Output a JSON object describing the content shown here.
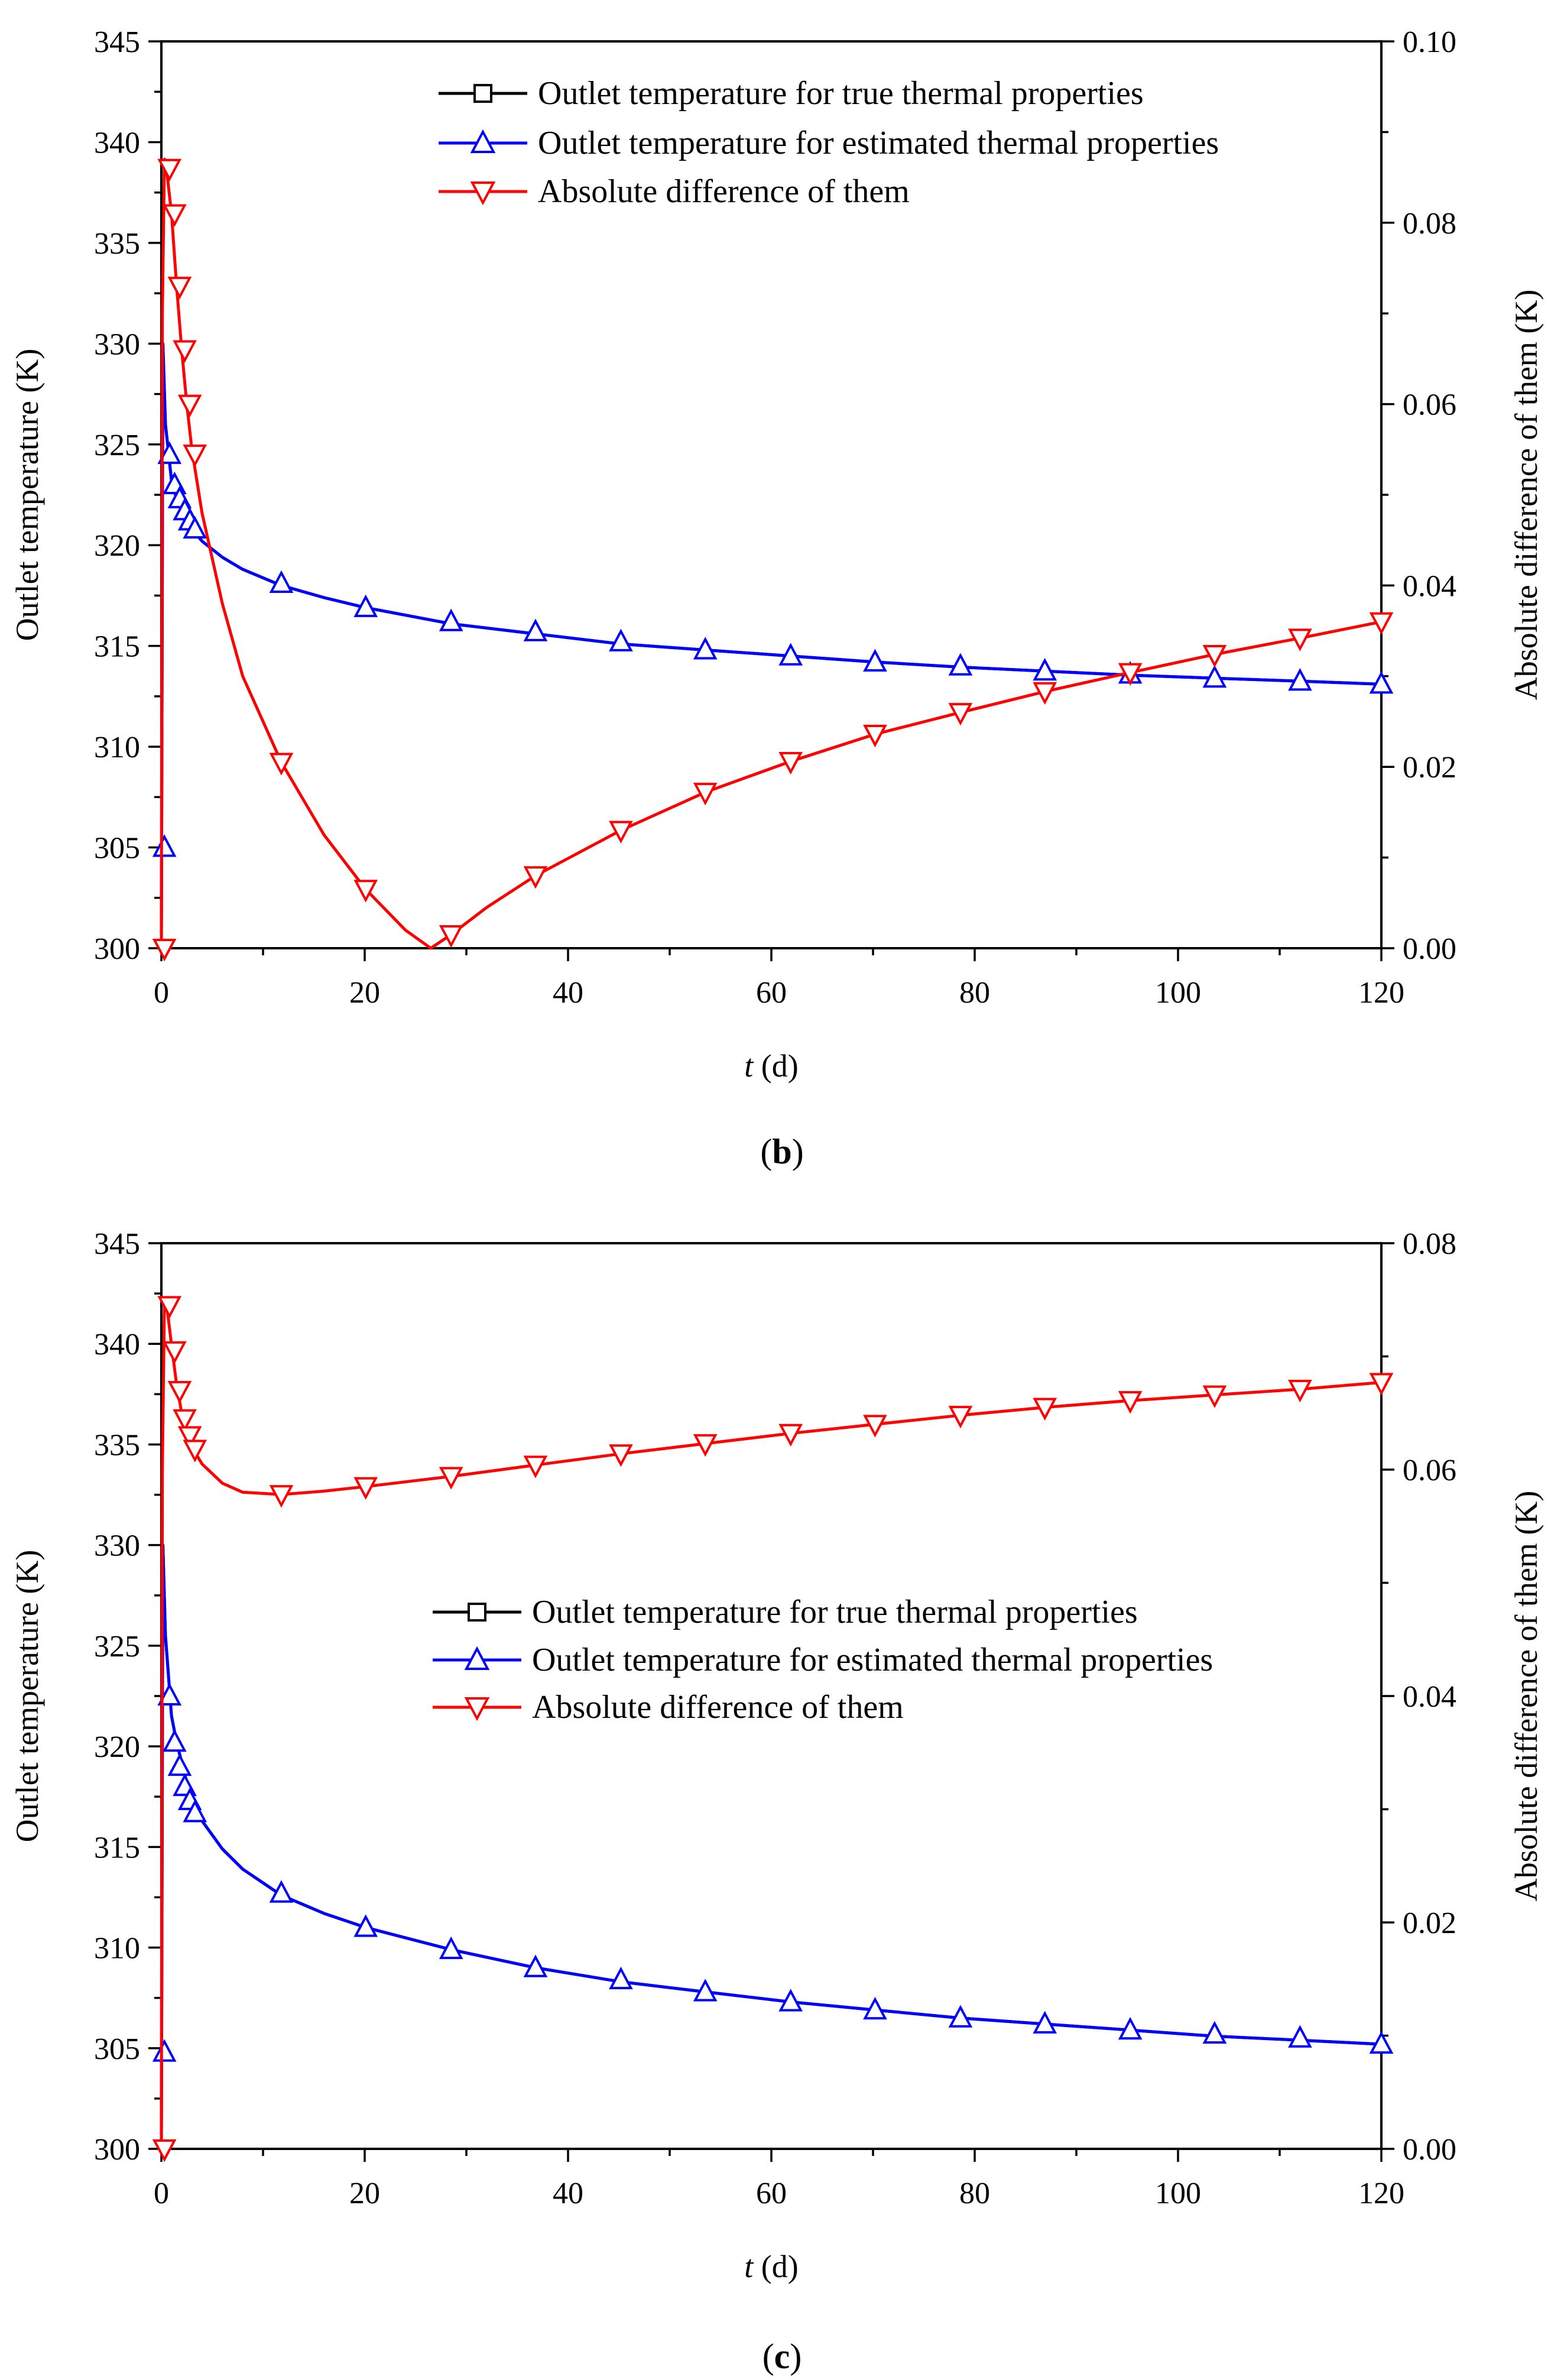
{
  "figures": [
    {
      "caption": {
        "open": "(",
        "letter": "b",
        "close": ")"
      }
    },
    {
      "caption": {
        "open": "(",
        "letter": "c",
        "close": ")"
      }
    }
  ],
  "colors": {
    "true_series": "#000000",
    "estimated_series": "#0000ff",
    "difference_series": "#ff0000"
  },
  "chart_data": [
    {
      "type": "line",
      "title": "",
      "xlabel_italic": "t",
      "xlabel_rest": " (d)",
      "ylabel": "Outlet temperature (K)",
      "y2label": "Absolute difference of them (K)",
      "xlim": [
        0,
        120
      ],
      "ylim": [
        300,
        345
      ],
      "y2lim": [
        0,
        0.1
      ],
      "xticks": [
        0,
        20,
        40,
        60,
        80,
        100,
        120
      ],
      "xtick_labels": [
        "0",
        "20",
        "40",
        "60",
        "80",
        "100",
        "120"
      ],
      "yticks": [
        300,
        305,
        310,
        315,
        320,
        325,
        330,
        335,
        340,
        345
      ],
      "ytick_labels": [
        "300",
        "305",
        "310",
        "315",
        "320",
        "325",
        "330",
        "335",
        "340",
        "345"
      ],
      "y2ticks": [
        0,
        0.02,
        0.04,
        0.06,
        0.08,
        0.1
      ],
      "y2tick_labels": [
        "0.00",
        "0.02",
        "0.04",
        "0.06",
        "0.08",
        "0.10"
      ],
      "legend_position": "top-right",
      "legend": [
        "Outlet temperature for true thermal properties",
        "Outlet temperature for estimated thermal properties",
        "Absolute difference of them"
      ],
      "series": [
        {
          "name": "Outlet temperature for true thermal properties",
          "axis": "left",
          "marker": "square",
          "x": [
            0,
            0.15,
            0.4,
            1,
            1.5,
            2,
            2.5,
            3,
            4,
            6,
            8,
            11.8,
            16,
            20.1,
            28.5,
            36.8,
            45.2,
            53.5,
            61.9,
            70.2,
            78.6,
            86.9,
            95.3,
            103.6,
            112,
            120
          ],
          "y": [
            300,
            330,
            326,
            323.2,
            322.3,
            321.7,
            321.2,
            320.8,
            320.2,
            319.4,
            318.8,
            318,
            317.4,
            316.9,
            316.1,
            315.6,
            315.1,
            314.8,
            314.5,
            314.2,
            313.95,
            313.75,
            313.55,
            313.4,
            313.25,
            313.1
          ],
          "marker_x": [],
          "marker_y": []
        },
        {
          "name": "Outlet temperature for estimated thermal properties",
          "axis": "left",
          "marker": "triangle-up",
          "x": [
            0,
            0.15,
            0.4,
            1,
            1.5,
            2,
            2.5,
            3,
            4,
            6,
            8,
            11.8,
            16,
            20.1,
            28.5,
            36.8,
            45.2,
            53.5,
            61.9,
            70.2,
            78.6,
            86.9,
            95.3,
            103.6,
            112,
            120
          ],
          "y": [
            300,
            330,
            326,
            323.2,
            322.3,
            321.7,
            321.2,
            320.8,
            320.2,
            319.4,
            318.8,
            318,
            317.4,
            316.9,
            316.1,
            315.6,
            315.1,
            314.8,
            314.5,
            314.2,
            313.95,
            313.75,
            313.55,
            313.4,
            313.25,
            313.1
          ],
          "marker_x": [
            0.3,
            0.8,
            1.3,
            1.8,
            2.3,
            2.8,
            3.3,
            11.8,
            20.1,
            28.5,
            36.8,
            45.2,
            53.5,
            61.9,
            70.2,
            78.6,
            86.9,
            95.3,
            103.6,
            112,
            120
          ],
          "marker_y": [
            305,
            324.5,
            323,
            322.3,
            321.7,
            321.2,
            320.8,
            318.1,
            316.9,
            316.2,
            315.7,
            315.2,
            314.8,
            314.5,
            314.2,
            314,
            313.75,
            313.6,
            313.4,
            313.25,
            313.1
          ]
        },
        {
          "name": "Absolute difference of them",
          "axis": "right",
          "marker": "triangle-down",
          "x": [
            0,
            0.1,
            0.3,
            0.6,
            1,
            1.5,
            2,
            2.5,
            3,
            4,
            6,
            8,
            11.8,
            16,
            20.1,
            24,
            26.5,
            28.5,
            32,
            36.8,
            45.2,
            53.5,
            61.9,
            70.2,
            78.6,
            86.9,
            95.3,
            103.6,
            112,
            120
          ],
          "y": [
            0,
            0.07,
            0.087,
            0.085,
            0.081,
            0.073,
            0.066,
            0.06,
            0.055,
            0.048,
            0.038,
            0.03,
            0.0205,
            0.0125,
            0.0065,
            0.002,
            0,
            0.0015,
            0.0045,
            0.008,
            0.013,
            0.0172,
            0.0206,
            0.0236,
            0.026,
            0.0283,
            0.0304,
            0.0324,
            0.0342,
            0.036
          ],
          "marker_x": [
            0.3,
            0.8,
            1.3,
            1.8,
            2.3,
            2.8,
            3.3,
            11.8,
            20.1,
            28.5,
            36.8,
            45.2,
            53.5,
            61.9,
            70.2,
            78.6,
            86.9,
            95.3,
            103.6,
            112,
            120
          ],
          "marker_y": [
            0,
            0.086,
            0.081,
            0.073,
            0.066,
            0.06,
            0.0545,
            0.0205,
            0.0065,
            0.0015,
            0.008,
            0.013,
            0.0172,
            0.0206,
            0.0236,
            0.026,
            0.0283,
            0.0304,
            0.0324,
            0.0342,
            0.036
          ]
        }
      ]
    },
    {
      "type": "line",
      "title": "",
      "xlabel_italic": "t",
      "xlabel_rest": " (d)",
      "ylabel": "Outlet temperature (K)",
      "y2label": "Absolute difference of them (K)",
      "xlim": [
        0,
        120
      ],
      "ylim": [
        300,
        345
      ],
      "y2lim": [
        0,
        0.08
      ],
      "xticks": [
        0,
        20,
        40,
        60,
        80,
        100,
        120
      ],
      "xtick_labels": [
        "0",
        "20",
        "40",
        "60",
        "80",
        "100",
        "120"
      ],
      "yticks": [
        300,
        305,
        310,
        315,
        320,
        325,
        330,
        335,
        340,
        345
      ],
      "ytick_labels": [
        "300",
        "305",
        "310",
        "315",
        "320",
        "325",
        "330",
        "335",
        "340",
        "345"
      ],
      "y2ticks": [
        0,
        0.02,
        0.04,
        0.06,
        0.08
      ],
      "y2tick_labels": [
        "0.00",
        "0.02",
        "0.04",
        "0.06",
        "0.08"
      ],
      "legend_position": "center",
      "legend": [
        "Outlet temperature for true thermal properties",
        "Outlet temperature for estimated thermal properties",
        "Absolute difference of them"
      ],
      "series": [
        {
          "name": "Outlet temperature for true thermal properties",
          "axis": "left",
          "marker": "square",
          "x": [
            0,
            0.15,
            0.4,
            1,
            1.5,
            2,
            2.5,
            3,
            4,
            6,
            8,
            11.8,
            16,
            20.1,
            28.5,
            36.8,
            45.2,
            53.5,
            61.9,
            70.2,
            78.6,
            86.9,
            95.3,
            103.6,
            112,
            120
          ],
          "y": [
            300,
            330,
            325.5,
            321.5,
            320.2,
            319.2,
            318.2,
            317.4,
            316.3,
            314.9,
            313.9,
            312.6,
            311.7,
            311,
            309.9,
            309,
            308.3,
            307.8,
            307.3,
            306.9,
            306.5,
            306.2,
            305.9,
            305.6,
            305.4,
            305.2
          ],
          "marker_x": [],
          "marker_y": []
        },
        {
          "name": "Outlet temperature for estimated thermal properties",
          "axis": "left",
          "marker": "triangle-up",
          "x": [
            0,
            0.15,
            0.4,
            1,
            1.5,
            2,
            2.5,
            3,
            4,
            6,
            8,
            11.8,
            16,
            20.1,
            28.5,
            36.8,
            45.2,
            53.5,
            61.9,
            70.2,
            78.6,
            86.9,
            95.3,
            103.6,
            112,
            120
          ],
          "y": [
            300,
            330,
            325.5,
            321.5,
            320.2,
            319.2,
            318.2,
            317.4,
            316.3,
            314.9,
            313.9,
            312.6,
            311.7,
            311,
            309.9,
            309,
            308.3,
            307.8,
            307.3,
            306.9,
            306.5,
            306.2,
            305.9,
            305.6,
            305.4,
            305.2
          ],
          "marker_x": [
            0.3,
            0.8,
            1.3,
            1.8,
            2.3,
            2.8,
            3.3,
            11.8,
            20.1,
            28.5,
            36.8,
            45.2,
            53.5,
            61.9,
            70.2,
            78.6,
            86.9,
            95.3,
            103.6,
            112,
            120
          ],
          "marker_y": [
            304.8,
            322.5,
            320.2,
            319,
            318,
            317.3,
            316.7,
            312.7,
            311,
            309.9,
            309,
            308.4,
            307.8,
            307.3,
            306.9,
            306.5,
            306.2,
            305.9,
            305.7,
            305.5,
            305.2
          ]
        },
        {
          "name": "Absolute difference of them",
          "axis": "right",
          "marker": "triangle-down",
          "x": [
            0,
            0.1,
            0.3,
            0.6,
            1,
            1.5,
            2,
            2.5,
            3,
            4,
            6,
            8,
            11.8,
            16,
            20.1,
            28.5,
            36.8,
            45.2,
            53.5,
            61.9,
            70.2,
            78.6,
            86.9,
            95.3,
            103.6,
            112,
            120
          ],
          "y": [
            0,
            0.06,
            0.075,
            0.074,
            0.071,
            0.0675,
            0.065,
            0.0632,
            0.062,
            0.0605,
            0.0588,
            0.058,
            0.0578,
            0.0581,
            0.0585,
            0.0594,
            0.0604,
            0.0614,
            0.0623,
            0.0632,
            0.064,
            0.0648,
            0.0655,
            0.0661,
            0.0666,
            0.0671,
            0.0677
          ],
          "marker_x": [
            0.3,
            0.8,
            1.3,
            1.8,
            2.3,
            2.8,
            3.3,
            11.8,
            20.1,
            28.5,
            36.8,
            45.2,
            53.5,
            61.9,
            70.2,
            78.6,
            86.9,
            95.3,
            103.6,
            112,
            120
          ],
          "marker_y": [
            0,
            0.0745,
            0.0705,
            0.067,
            0.0645,
            0.063,
            0.0618,
            0.0578,
            0.0585,
            0.0594,
            0.0604,
            0.0614,
            0.0623,
            0.0632,
            0.064,
            0.0648,
            0.0655,
            0.0661,
            0.0666,
            0.0671,
            0.0677
          ]
        }
      ]
    }
  ]
}
